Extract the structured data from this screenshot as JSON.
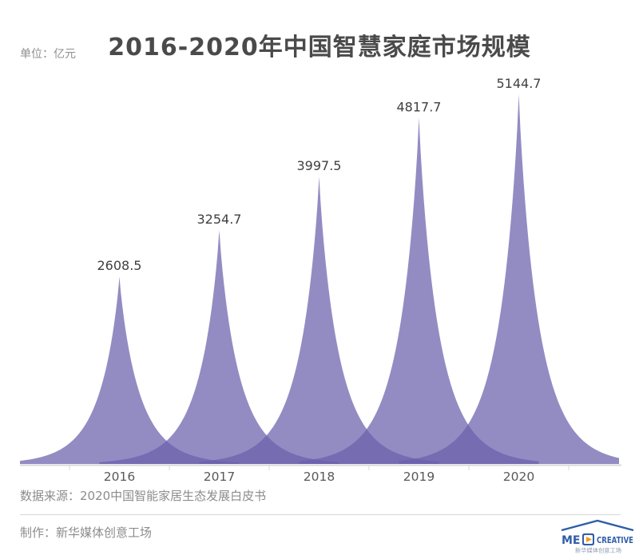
{
  "header": {
    "title": "2016-2020年中国智慧家庭市场规模",
    "unit_label": "单位：亿元"
  },
  "chart_data": {
    "type": "area",
    "style": "overlapping-peak-spikes",
    "title": "2016-2020年中国智慧家庭市场规模",
    "unit": "亿元",
    "categories": [
      "2016",
      "2017",
      "2018",
      "2019",
      "2020"
    ],
    "values": [
      2608.5,
      3254.7,
      3997.5,
      4817.7,
      5144.7
    ],
    "value_labels": [
      "2608.5",
      "3254.7",
      "3997.5",
      "4817.7",
      "5144.7"
    ],
    "ylim": [
      0,
      5200
    ],
    "grid": false,
    "legend": "none",
    "data_labels_shown": true,
    "fill_color": "#6A60AC",
    "fill_opacity": 0.72,
    "overlap_color_seen": "#766CB3",
    "single_layer_color_seen": "#948CC3",
    "value_label_color": "#404040",
    "category_label_color": "#595959",
    "axis_color": "#D9D9D9"
  },
  "footer": {
    "source": "数据来源：2020中国智能家居生态发展白皮书",
    "producer": "制作：新华媒体创意工场"
  },
  "logo": {
    "text_left": "ME",
    "text_right": "CREATIVE",
    "subtext": "新华媒体创意工场",
    "blue": "#2F5EA8",
    "orange": "#F29B1D",
    "subtext_color": "#8C9BB5"
  }
}
